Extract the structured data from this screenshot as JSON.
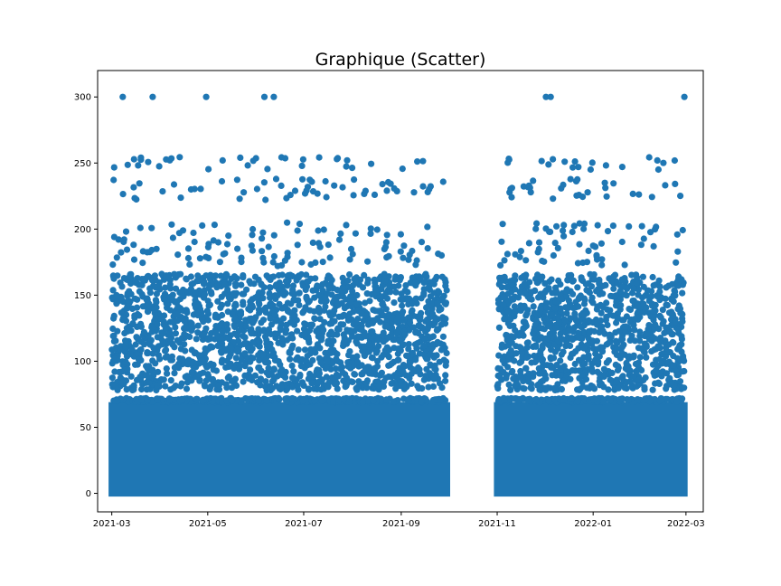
{
  "chart_data": {
    "type": "scatter",
    "title": "Graphique (Scatter)",
    "xlabel": "",
    "ylabel": "",
    "x_axis_type": "date",
    "xlim": [
      "2021-02-20",
      "2022-03-12"
    ],
    "ylim": [
      -14,
      320
    ],
    "x_ticks": [
      "2021-03-01",
      "2021-05-01",
      "2021-07-01",
      "2021-09-01",
      "2021-11-01",
      "2022-01-01",
      "2022-03-01"
    ],
    "x_tick_labels": [
      "2021-03",
      "2021-05",
      "2021-07",
      "2021-09",
      "2021-11",
      "2022-01",
      "2022-03"
    ],
    "y_ticks": [
      0,
      50,
      100,
      150,
      200,
      250,
      300
    ],
    "y_tick_labels": [
      "0",
      "50",
      "100",
      "150",
      "200",
      "250",
      "300"
    ],
    "grid": false,
    "legend": "none",
    "marker_color": "#1f77b4",
    "date_ranges": [
      [
        "2021-03-01",
        "2021-09-30"
      ],
      [
        "2021-11-01",
        "2022-02-28"
      ]
    ],
    "data_gap": [
      "2021-10-01",
      "2021-10-31"
    ],
    "value_bands": [
      [
        0,
        72,
        "dense"
      ],
      [
        78,
        120,
        "medium"
      ],
      [
        120,
        166,
        "medium"
      ],
      [
        172,
        205,
        "sparse"
      ],
      [
        222,
        238,
        "sparse"
      ],
      [
        245,
        255,
        "sparse"
      ]
    ],
    "outliers": [
      {
        "x": "2021-03-08",
        "y": 300
      },
      {
        "x": "2021-03-27",
        "y": 300
      },
      {
        "x": "2021-04-30",
        "y": 300
      },
      {
        "x": "2021-06-06",
        "y": 300
      },
      {
        "x": "2021-06-12",
        "y": 300
      },
      {
        "x": "2021-12-02",
        "y": 300
      },
      {
        "x": "2021-12-05",
        "y": 300
      },
      {
        "x": "2022-02-28",
        "y": 300
      }
    ]
  }
}
